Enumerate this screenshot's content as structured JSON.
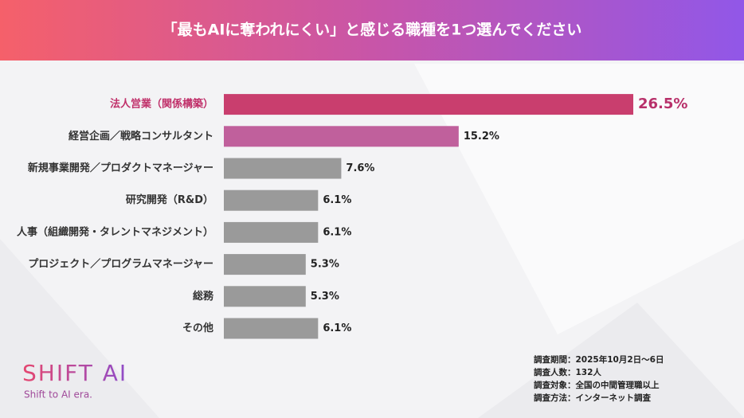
{
  "chart_data": {
    "type": "hbar",
    "title": "「最もAIに奪われにくい」と感じる職種を1つ選んでください",
    "categories": [
      "法人営業（関係構築）",
      "経営企画／戦略コンサルタント",
      "新規事業開発／プロダクトマネージャー",
      "研究開発（R&D）",
      "人事（組織開発・タレントマネジメント）",
      "プロジェクト／プログラムマネージャー",
      "総務",
      "その他"
    ],
    "values": [
      26.5,
      15.2,
      7.6,
      6.1,
      6.1,
      5.3,
      5.3,
      6.1
    ],
    "value_labels": [
      "26.5%",
      "15.2%",
      "7.6%",
      "6.1%",
      "6.1%",
      "5.3%",
      "5.3%",
      "6.1%"
    ],
    "colors": [
      "#c93e6e",
      "#c0609c",
      "#9a9a9a",
      "#9a9a9a",
      "#9a9a9a",
      "#9a9a9a",
      "#9a9a9a",
      "#9a9a9a"
    ],
    "notes": [
      "調査期間：2025年10月2日〜6日",
      "調査人数：132人",
      "調査対象：全国の中間管理職以上",
      "調査方法：インターネット調査"
    ]
  },
  "logo": {
    "name": "SHIFT AI",
    "tagline": "Shift to AI era."
  }
}
